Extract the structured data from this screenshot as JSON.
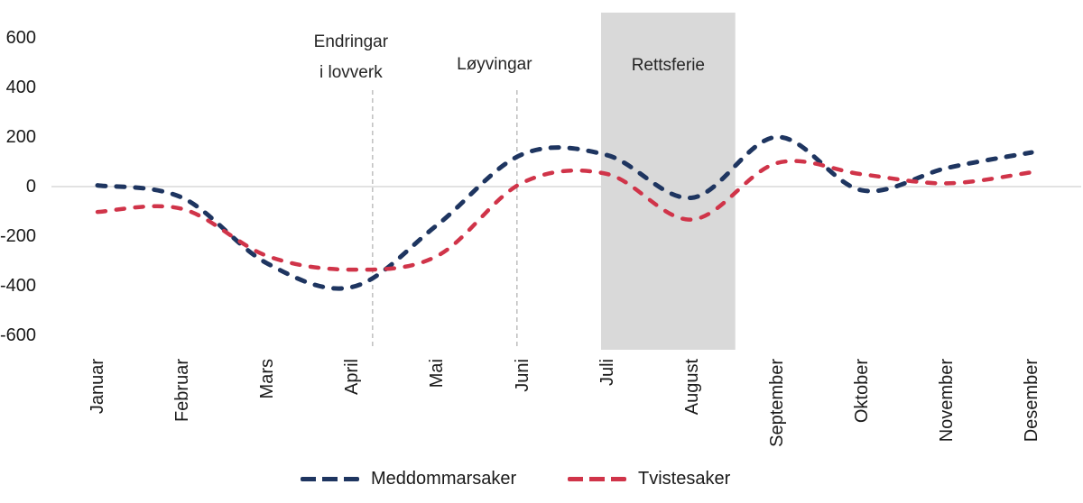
{
  "chart_data": {
    "type": "line",
    "title": "",
    "xlabel": "",
    "ylabel": "",
    "categories": [
      "Januar",
      "Februar",
      "Mars",
      "April",
      "Mai",
      "Juni",
      "Juli",
      "August",
      "September",
      "Oktober",
      "November",
      "Desember"
    ],
    "series": [
      {
        "name": "Meddommarsaker",
        "color": "#1e3560",
        "style": "dashed",
        "values": [
          5,
          -45,
          -310,
          -405,
          -155,
          130,
          127,
          -45,
          200,
          -15,
          75,
          138
        ]
      },
      {
        "name": "Tvistesaker",
        "color": "#d03449",
        "style": "dashed",
        "values": [
          -102,
          -90,
          -280,
          -335,
          -280,
          15,
          51,
          -133,
          95,
          50,
          13,
          58
        ]
      }
    ],
    "y_ticks": [
      600,
      400,
      200,
      0,
      -200,
      -400,
      -600
    ],
    "ylim": [
      -700,
      700
    ],
    "grid": "zero-line-only",
    "zero_line_color": "#d9d9d9",
    "legend_position": "bottom",
    "annotations": [
      {
        "type": "vline",
        "label_lines": [
          "Endringar",
          "i lovverk"
        ],
        "x_months": 3.24,
        "line_color": "#9e9e9e"
      },
      {
        "type": "vline",
        "label_lines": [
          "Løyvingar"
        ],
        "x_months": 4.94,
        "line_color": "#9e9e9e"
      },
      {
        "type": "region",
        "label_lines": [
          "Rettsferie"
        ],
        "x_from_months": 5.93,
        "x_to_months": 7.51,
        "color": "#d9d9d9"
      }
    ]
  }
}
